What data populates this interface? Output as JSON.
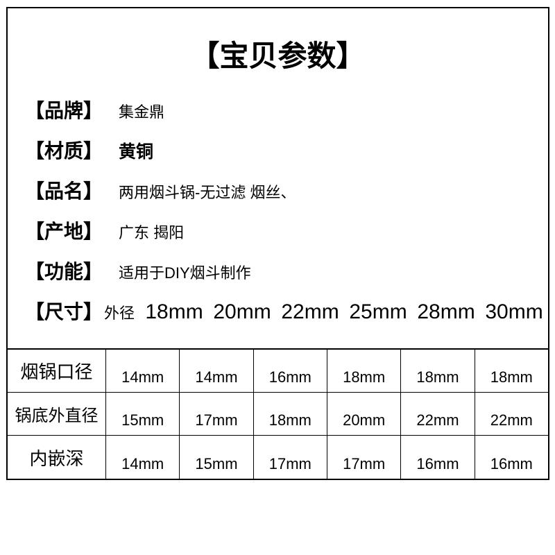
{
  "title": "【宝贝参数】",
  "specs": {
    "brand": {
      "label": "【品牌】",
      "value": "集金鼎"
    },
    "material": {
      "label": "【材质】",
      "value": "黄铜"
    },
    "name": {
      "label": "【品名】",
      "value": "两用烟斗锅-无过滤  烟丝、"
    },
    "origin": {
      "label": "【产地】",
      "value": "广东 揭阳"
    },
    "function": {
      "label": "【功能】",
      "value": "适用于DIY烟斗制作"
    },
    "size": {
      "label": "【尺寸】",
      "sublabel": "外径"
    }
  },
  "sizeHeaders": [
    "18mm",
    "20mm",
    "22mm",
    "25mm",
    "28mm",
    "30mm"
  ],
  "table": {
    "rows": [
      {
        "label": "烟锅口径",
        "cells": [
          "14mm",
          "14mm",
          "16mm",
          "18mm",
          "18mm",
          "18mm"
        ]
      },
      {
        "label": "锅底外直径",
        "cells": [
          "15mm",
          "17mm",
          "18mm",
          "20mm",
          "22mm",
          "22mm"
        ]
      },
      {
        "label": "内嵌深",
        "cells": [
          "14mm",
          "15mm",
          "17mm",
          "17mm",
          "16mm",
          "16mm"
        ]
      }
    ]
  },
  "colors": {
    "background": "#ffffff",
    "text": "#000000",
    "border": "#000000"
  }
}
